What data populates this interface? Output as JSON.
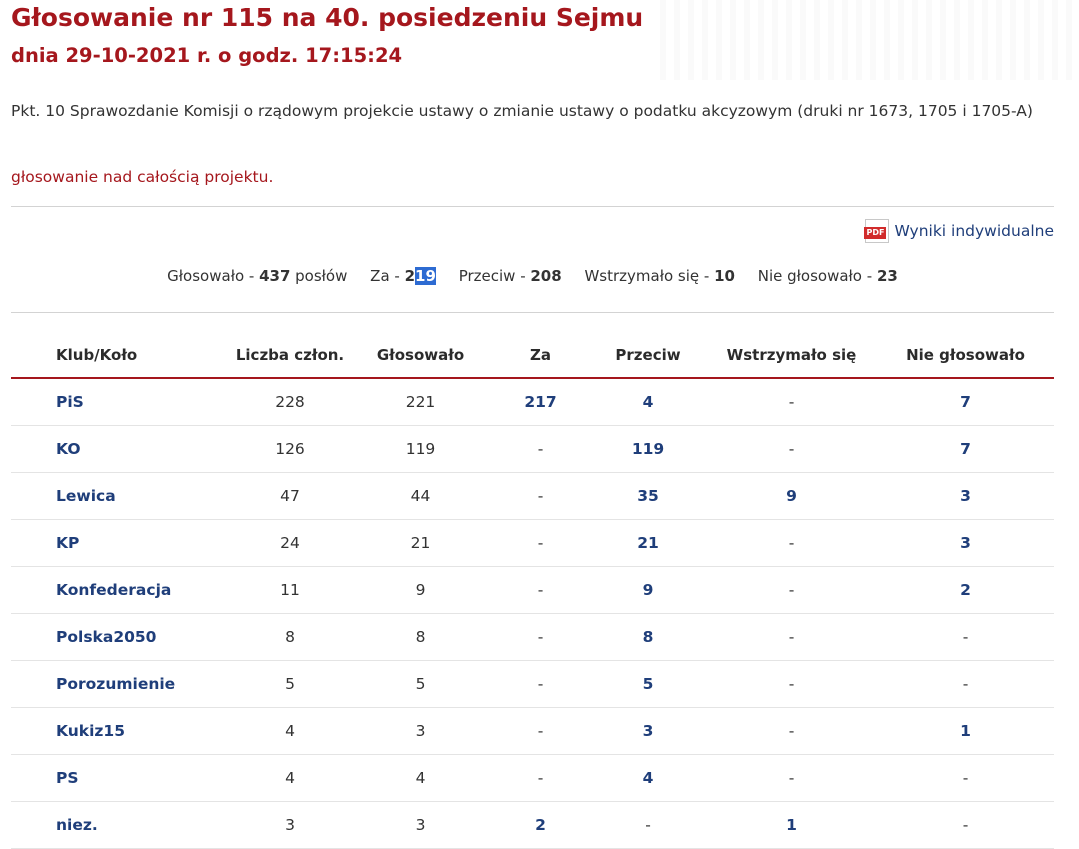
{
  "header": {
    "title": "Głosowanie nr 115 na 40. posiedzeniu Sejmu",
    "date": "dnia 29-10-2021 r. o godz. 17:15:24"
  },
  "description": "Pkt. 10 Sprawozdanie Komisji o rządowym projekcie ustawy o zmianie ustawy o podatku akcyzowym (druki nr 1673, 1705 i 1705-A)",
  "subdescription": "głosowanie nad całością projektu.",
  "pdf_link": {
    "icon": "pdf-icon",
    "icon_text": "PDF",
    "label": "Wyniki indywidualne"
  },
  "summary": {
    "voted_label": "Głosowało - ",
    "voted_value": "437",
    "voted_suffix": " posłów",
    "za_label": "Za - ",
    "za_value_pre": "2",
    "za_value_hl": "19",
    "przeciw_label": "Przeciw - ",
    "przeciw_value": "208",
    "wstrzymalo_label": "Wstrzymało się - ",
    "wstrzymalo_value": "10",
    "nie_label": "Nie głosowało - ",
    "nie_value": "23"
  },
  "table": {
    "headers": [
      "Klub/Koło",
      "Liczba człon.",
      "Głosowało",
      "Za",
      "Przeciw",
      "Wstrzymało się",
      "Nie głosowało"
    ],
    "rows": [
      [
        "PiS",
        "228",
        "221",
        "217",
        "4",
        "-",
        "7"
      ],
      [
        "KO",
        "126",
        "119",
        "-",
        "119",
        "-",
        "7"
      ],
      [
        "Lewica",
        "47",
        "44",
        "-",
        "35",
        "9",
        "3"
      ],
      [
        "KP",
        "24",
        "21",
        "-",
        "21",
        "-",
        "3"
      ],
      [
        "Konfederacja",
        "11",
        "9",
        "-",
        "9",
        "-",
        "2"
      ],
      [
        "Polska2050",
        "8",
        "8",
        "-",
        "8",
        "-",
        "-"
      ],
      [
        "Porozumienie",
        "5",
        "5",
        "-",
        "5",
        "-",
        "-"
      ],
      [
        "Kukiz15",
        "4",
        "3",
        "-",
        "3",
        "-",
        "1"
      ],
      [
        "PS",
        "4",
        "4",
        "-",
        "4",
        "-",
        "-"
      ],
      [
        "niez.",
        "3",
        "3",
        "2",
        "-",
        "1",
        "-"
      ]
    ]
  },
  "colors": {
    "accent": "#a5171d",
    "link": "#1f3e7a",
    "highlight": "#2d6bd2"
  }
}
